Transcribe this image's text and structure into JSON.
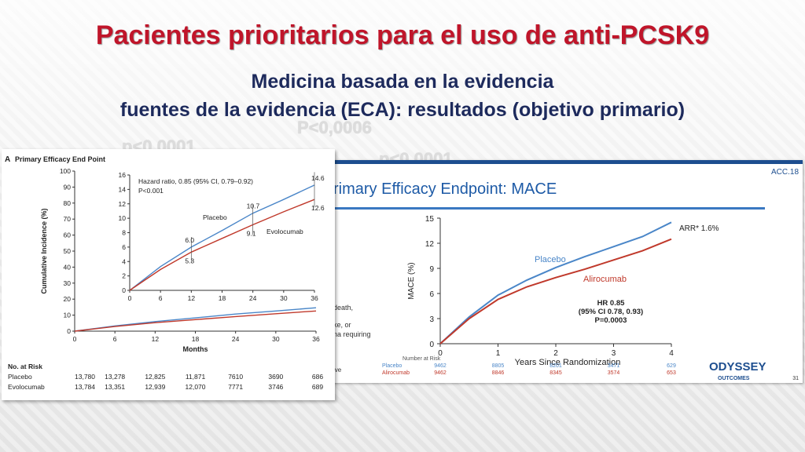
{
  "slide": {
    "title": "Pacientes prioritarios para el uso de anti-PCSK9",
    "subtitle1": "Medicina basada en la evidencia",
    "subtitle2": "fuentes de la evidencia (ECA): resultados (objetivo primario)",
    "ghost_labels": [
      "P<0,0006",
      "p<0,0001",
      "p<0,0001"
    ]
  },
  "colors": {
    "title": "#c0152a",
    "subtitle": "#1d2a5c",
    "blue": "#4a86c8",
    "red": "#c0392b"
  },
  "chart_data": [
    {
      "type": "line",
      "panel_letter": "A",
      "title": "Primary Efficacy End Point",
      "xlabel": "Months",
      "ylabel": "Cumulative Incidence (%)",
      "xlim": [
        0,
        36
      ],
      "ylim": [
        0,
        100
      ],
      "xticks": [
        0,
        6,
        12,
        18,
        24,
        30,
        36
      ],
      "yticks": [
        0,
        10,
        20,
        30,
        40,
        50,
        60,
        70,
        80,
        90,
        100
      ],
      "series": [
        {
          "name": "Placebo",
          "x": [
            0,
            6,
            12,
            18,
            24,
            30,
            36
          ],
          "y": [
            0,
            3.3,
            6.0,
            8.3,
            10.7,
            12.6,
            14.6
          ]
        },
        {
          "name": "Evolocumab",
          "x": [
            0,
            6,
            12,
            18,
            24,
            30,
            36
          ],
          "y": [
            0,
            2.9,
            5.3,
            7.2,
            9.1,
            10.9,
            12.6
          ]
        }
      ],
      "inset": {
        "xlim": [
          0,
          36
        ],
        "ylim": [
          0,
          16
        ],
        "xticks": [
          0,
          6,
          12,
          18,
          24,
          30,
          36
        ],
        "yticks": [
          0,
          2,
          4,
          6,
          8,
          10,
          12,
          14,
          16
        ],
        "hazard_text": "Hazard ratio, 0.85 (95% CI, 0.79–0.92)",
        "p_text": "P<0.001",
        "labels": {
          "placebo": "Placebo",
          "drug": "Evolocumab"
        },
        "annotations": [
          {
            "x": 12,
            "y": 6.0,
            "text": "6.0"
          },
          {
            "x": 12,
            "y": 5.3,
            "text": "5.3"
          },
          {
            "x": 24,
            "y": 10.7,
            "text": "10.7"
          },
          {
            "x": 24,
            "y": 9.1,
            "text": "9.1"
          },
          {
            "x": 36,
            "y": 14.6,
            "text": "14.6"
          },
          {
            "x": 36,
            "y": 12.6,
            "text": "12.6"
          }
        ]
      },
      "risk_table": {
        "header": "No. at Risk",
        "rows": [
          {
            "name": "Placebo",
            "values": [
              "13,780",
              "13,278",
              "12,825",
              "11,871",
              "7610",
              "3690",
              "686"
            ]
          },
          {
            "name": "Evolocumab",
            "values": [
              "13,784",
              "13,351",
              "12,939",
              "12,070",
              "7771",
              "3746",
              "689"
            ]
          }
        ]
      },
      "side_fragments": [
        "death,",
        "ke, or",
        "na requiring",
        "ive"
      ]
    },
    {
      "type": "line",
      "title": "rimary Efficacy Endpoint: MACE",
      "corner_label": "ACC.18",
      "xlabel": "Years Since Randomization",
      "ylabel": "MACE (%)",
      "xlim": [
        0,
        4
      ],
      "ylim": [
        0,
        15
      ],
      "xticks": [
        0,
        1,
        2,
        3,
        4
      ],
      "yticks": [
        0,
        3,
        6,
        9,
        12,
        15
      ],
      "series": [
        {
          "name": "Placebo",
          "x": [
            0,
            0.5,
            1,
            1.5,
            2,
            2.5,
            3,
            3.5,
            4
          ],
          "y": [
            0,
            3.2,
            5.8,
            7.6,
            9.1,
            10.4,
            11.6,
            12.8,
            14.5
          ]
        },
        {
          "name": "Alirocumab",
          "x": [
            0,
            0.5,
            1,
            1.5,
            2,
            2.5,
            3,
            3.5,
            4
          ],
          "y": [
            0,
            3.0,
            5.3,
            6.8,
            7.9,
            8.9,
            10.0,
            11.1,
            12.5
          ]
        }
      ],
      "arr_text": "ARR* 1.6%",
      "hr_lines": [
        "HR 0.85",
        "(95% CI 0.78, 0.93)",
        "P=0.0003"
      ],
      "risk_table": {
        "header": "Number at Risk",
        "rows": [
          {
            "name": "Placebo",
            "values": [
              "9462",
              "8805",
              "8201",
              "3471",
              "629"
            ]
          },
          {
            "name": "Alirocumab",
            "values": [
              "9462",
              "8846",
              "8345",
              "3574",
              "653"
            ]
          }
        ]
      },
      "logo_text": "ODYSSEY",
      "logo_sub": "OUTCOMES",
      "page_number": "31"
    }
  ]
}
